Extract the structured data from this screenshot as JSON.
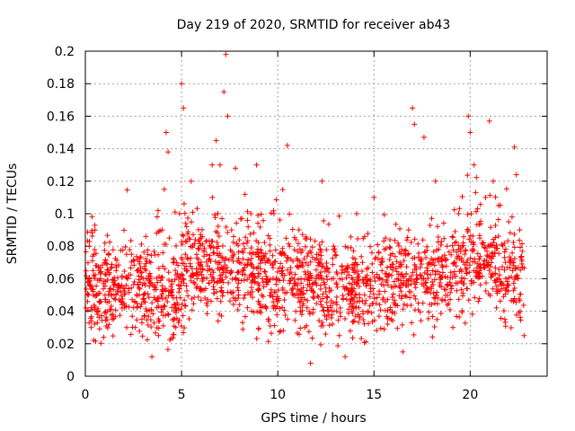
{
  "chart_data": {
    "type": "scatter",
    "title": "Day 219 of 2020, SRMTID for receiver ab43",
    "xlabel": "GPS time / hours",
    "ylabel": "SRMTID / TECUs",
    "xlim": [
      0,
      24
    ],
    "ylim": [
      0,
      0.2
    ],
    "xticks": [
      0,
      5,
      10,
      15,
      20
    ],
    "xtick_labels": [
      "0",
      "5",
      "10",
      "15",
      "20"
    ],
    "yticks": [
      0,
      0.02,
      0.04,
      0.06,
      0.08,
      0.1,
      0.12,
      0.14,
      0.16,
      0.18,
      0.2
    ],
    "ytick_labels": [
      "0",
      "0.02",
      "0.04",
      "0.06",
      "0.08",
      "0.1",
      "0.12",
      "0.14",
      "0.16",
      "0.18",
      "0.2"
    ],
    "grid": true,
    "marker": "plus",
    "color": "#ff0000",
    "data_range_x": [
      0,
      22.8
    ],
    "series": [
      {
        "name": "SRMTID",
        "points": [
          [
            0.1,
            0.05
          ],
          [
            0.2,
            0.08
          ],
          [
            0.3,
            0.03
          ],
          [
            0.4,
            0.065
          ],
          [
            0.5,
            0.09
          ],
          [
            0.6,
            0.04
          ],
          [
            0.8,
            0.06
          ],
          [
            1.0,
            0.07
          ],
          [
            1.2,
            0.05
          ],
          [
            1.4,
            0.035
          ],
          [
            1.6,
            0.065
          ],
          [
            1.8,
            0.055
          ],
          [
            2.0,
            0.045
          ],
          [
            2.2,
            0.06
          ],
          [
            2.4,
            0.075
          ],
          [
            2.6,
            0.03
          ],
          [
            2.8,
            0.05
          ],
          [
            3.0,
            0.06
          ],
          [
            3.2,
            0.04
          ],
          [
            3.4,
            0.07
          ],
          [
            3.6,
            0.055
          ],
          [
            3.8,
            0.025
          ],
          [
            4.0,
            0.09
          ],
          [
            4.1,
            0.115
          ],
          [
            4.2,
            0.15
          ],
          [
            4.3,
            0.138
          ],
          [
            4.5,
            0.05
          ],
          [
            4.7,
            0.03
          ],
          [
            4.9,
            0.1
          ],
          [
            5.0,
            0.18
          ],
          [
            5.1,
            0.165
          ],
          [
            5.2,
            0.075
          ],
          [
            5.5,
            0.12
          ],
          [
            5.8,
            0.06
          ],
          [
            6.0,
            0.085
          ],
          [
            6.3,
            0.045
          ],
          [
            6.6,
            0.11
          ],
          [
            6.8,
            0.145
          ],
          [
            7.0,
            0.13
          ],
          [
            7.2,
            0.175
          ],
          [
            7.3,
            0.198
          ],
          [
            7.4,
            0.16
          ],
          [
            7.6,
            0.09
          ],
          [
            7.8,
            0.128
          ],
          [
            8.0,
            0.07
          ],
          [
            8.3,
            0.05
          ],
          [
            8.6,
            0.1
          ],
          [
            8.9,
            0.13
          ],
          [
            9.2,
            0.06
          ],
          [
            9.5,
            0.035
          ],
          [
            9.8,
            0.1
          ],
          [
            10.2,
            0.075
          ],
          [
            10.5,
            0.142
          ],
          [
            10.8,
            0.05
          ],
          [
            11.1,
            0.09
          ],
          [
            11.4,
            0.03
          ],
          [
            11.7,
            0.008
          ],
          [
            12.0,
            0.06
          ],
          [
            12.3,
            0.12
          ],
          [
            12.6,
            0.04
          ],
          [
            12.9,
            0.08
          ],
          [
            13.2,
            0.025
          ],
          [
            13.5,
            0.012
          ],
          [
            13.8,
            0.05
          ],
          [
            14.1,
            0.1
          ],
          [
            14.4,
            0.07
          ],
          [
            14.7,
            0.04
          ],
          [
            15.0,
            0.11
          ],
          [
            15.3,
            0.06
          ],
          [
            15.6,
            0.085
          ],
          [
            15.9,
            0.035
          ],
          [
            16.2,
            0.06
          ],
          [
            16.5,
            0.015
          ],
          [
            16.8,
            0.09
          ],
          [
            17.0,
            0.165
          ],
          [
            17.1,
            0.155
          ],
          [
            17.3,
            0.045
          ],
          [
            17.6,
            0.147
          ],
          [
            17.9,
            0.07
          ],
          [
            18.2,
            0.12
          ],
          [
            18.5,
            0.055
          ],
          [
            18.8,
            0.08
          ],
          [
            19.1,
            0.03
          ],
          [
            19.4,
            0.1
          ],
          [
            19.7,
            0.06
          ],
          [
            19.9,
            0.16
          ],
          [
            20.0,
            0.15
          ],
          [
            20.2,
            0.13
          ],
          [
            20.5,
            0.085
          ],
          [
            20.8,
            0.11
          ],
          [
            21.0,
            0.157
          ],
          [
            21.2,
            0.12
          ],
          [
            21.5,
            0.06
          ],
          [
            21.8,
            0.035
          ],
          [
            22.0,
            0.095
          ],
          [
            22.2,
            0.065
          ],
          [
            22.3,
            0.141
          ],
          [
            22.4,
            0.124
          ],
          [
            22.6,
            0.04
          ],
          [
            22.8,
            0.025
          ]
        ]
      }
    ]
  }
}
